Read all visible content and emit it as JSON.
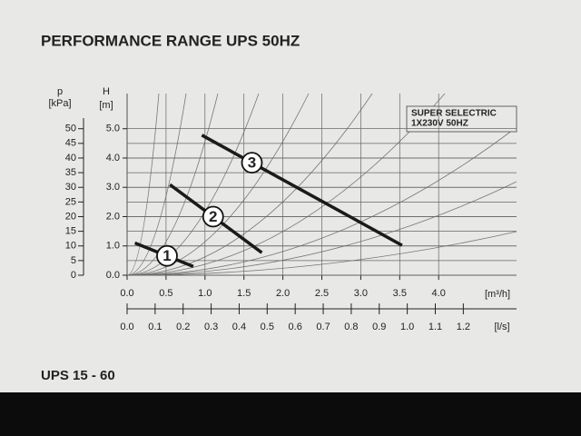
{
  "chart_data": {
    "type": "line",
    "title": "PERFORMANCE RANGE UPS 50HZ",
    "ylabel": "H",
    "ylabel_unit": "[m]",
    "y2label": "p",
    "y2label_unit": "[kPa]",
    "xlabel": "[m³/h]",
    "x2label": "[l/s]",
    "annotation": [
      "SUPER SELECTRIC",
      "1X230V 50HZ"
    ],
    "xlim": [
      0,
      5.0
    ],
    "xticks": [
      {
        "value": 0,
        "label": "0.0"
      },
      0.5,
      {
        "value": 1,
        "label": "1.0"
      },
      1.5,
      {
        "value": 2,
        "label": "2.0"
      },
      2.5,
      {
        "value": 3,
        "label": "3.0"
      },
      3.5,
      {
        "value": 4,
        "label": "4.0"
      }
    ],
    "x2lim": [
      0,
      1.39
    ],
    "x2ticks": [
      {
        "value": 0,
        "label": "0.0"
      },
      0.1,
      0.2,
      0.3,
      0.4,
      0.5,
      0.6,
      0.7,
      0.8,
      0.9,
      {
        "value": 1,
        "label": "1.0"
      },
      1.1,
      1.2
    ],
    "ylim": [
      0,
      6.2
    ],
    "yticks": [
      {
        "value": 0,
        "label": "0.0"
      },
      {
        "value": 1,
        "label": "1.0"
      },
      {
        "value": 2,
        "label": "2.0"
      },
      {
        "value": 3,
        "label": "3.0"
      },
      {
        "value": 4,
        "label": "4.0"
      },
      {
        "value": 5,
        "label": "5.0"
      }
    ],
    "y2lim": [
      0,
      62
    ],
    "y2ticks": [
      0,
      5,
      10,
      15,
      20,
      25,
      30,
      35,
      40,
      45,
      50
    ],
    "grid": true,
    "series": [
      {
        "name": "1",
        "color": "#1a1a1a",
        "x": [
          0.1,
          0.85
        ],
        "values": [
          1.1,
          0.3
        ]
      },
      {
        "name": "2",
        "color": "#1a1a1a",
        "x": [
          0.55,
          1.73
        ],
        "values": [
          3.09,
          0.77
        ]
      },
      {
        "name": "3",
        "color": "#1a1a1a",
        "x": [
          0.96,
          3.53
        ],
        "values": [
          4.78,
          1.02
        ]
      }
    ]
  },
  "footer": "UPS 15 - 60"
}
